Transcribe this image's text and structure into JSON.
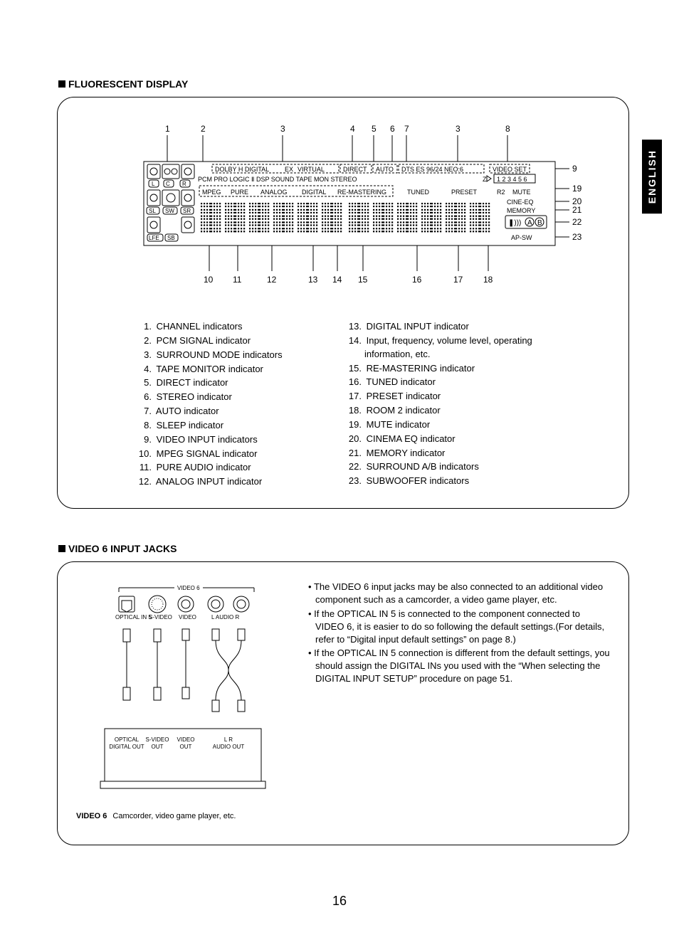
{
  "language_tab": "ENGLISH",
  "page_number": "16",
  "section_fluorescent": {
    "title": "FLUORESCENT DISPLAY",
    "top_callouts": [
      "1",
      "2",
      "3",
      "4",
      "5",
      "6",
      "7",
      "3",
      "8"
    ],
    "right_callouts": [
      "9",
      "19",
      "20",
      "21",
      "22",
      "23"
    ],
    "bottom_callouts": [
      "10",
      "11",
      "12",
      "13",
      "14",
      "15",
      "16",
      "17",
      "18"
    ],
    "row1_labels": [
      "DOLBY H DIGITAL",
      "EX",
      "VIRTUAL",
      "DIRECT",
      "AUTO",
      "DTS ES 96/24 NEO:6",
      "VIDEO SET"
    ],
    "row1b_labels": "PCM PRO LOGIC Ⅱ DSP  SOUND TAPE MON  STEREO",
    "row1b_right_small": "Z",
    "sleep_digits": "1 2 3 4 5 6",
    "row2_labels": [
      "MPEG",
      "PURE",
      "ANALOG",
      "DIGITAL",
      "RE-MASTERING",
      "TUNED",
      "PRESET",
      "R2",
      "MUTE"
    ],
    "row3_right": [
      "CINE-EQ",
      "MEMORY"
    ],
    "row4_right": "AP-SW",
    "speaker_labels_top": [
      "L",
      "C",
      "R"
    ],
    "speaker_labels_mid": [
      "SL",
      "SW",
      "SR"
    ],
    "speaker_labels_bot": [
      "LFE",
      "SB"
    ],
    "surround_box": {
      "glyph": "❚)))",
      "a": "A",
      "b": "B"
    },
    "legend_left": [
      "CHANNEL indicators",
      "PCM SIGNAL indicator",
      "SURROUND MODE indicators",
      "TAPE MONITOR indicator",
      "DIRECT indicator",
      "STEREO indicator",
      "AUTO indicator",
      "SLEEP indicator",
      "VIDEO INPUT indicators",
      "MPEG SIGNAL indicator",
      "PURE AUDIO indicator",
      "ANALOG INPUT indicator"
    ],
    "legend_right": [
      {
        "n": "13",
        "t": "DIGITAL INPUT indicator"
      },
      {
        "n": "14",
        "t": "Input, frequency, volume level, operating",
        "cont": "information, etc."
      },
      {
        "n": "15",
        "t": "RE-MASTERING indicator"
      },
      {
        "n": "16",
        "t": "TUNED indicator"
      },
      {
        "n": "17",
        "t": "PRESET indicator"
      },
      {
        "n": "18",
        "t": "ROOM 2 indicator"
      },
      {
        "n": "19",
        "t": "MUTE indicator"
      },
      {
        "n": "20",
        "t": "CINEMA EQ indicator"
      },
      {
        "n": "21",
        "t": "MEMORY indicator"
      },
      {
        "n": "22",
        "t": "SURROUND A/B indicators"
      },
      {
        "n": "23",
        "t": "SUBWOOFER indicators"
      }
    ]
  },
  "section_video6": {
    "title": "VIDEO 6 INPUT JACKS",
    "top_label": "VIDEO 6",
    "jack_top_labels": [
      "OPTICAL IN 5",
      "S-VIDEO",
      "VIDEO",
      "L  AUDIO  R"
    ],
    "bottom_box_labels": [
      {
        "l1": "OPTICAL",
        "l2": "DIGITAL OUT"
      },
      {
        "l1": "S-VIDEO",
        "l2": "OUT"
      },
      {
        "l1": "VIDEO",
        "l2": "OUT"
      },
      {
        "l1": "L     R",
        "l2": "AUDIO OUT"
      }
    ],
    "caption_bold": "VIDEO 6",
    "caption_rest": "Camcorder, video game player, etc.",
    "bullets": [
      "The VIDEO 6 input jacks may be also connected to an additional video component such as a camcorder, a video game player, etc.",
      "If the OPTICAL IN 5 is connected to the component connected to VIDEO 6, it is easier to do so following the default settings.(For details, refer to “Digital input default settings” on page 8.)",
      "If the OPTICAL IN 5 connection is different from the default settings, you should assign the DIGITAL INs you used with the “When selecting the DIGITAL INPUT SETUP” procedure on page 51."
    ]
  },
  "style": {
    "page_bg": "#ffffff",
    "text_color": "#000000",
    "diagram_stroke": "#000000",
    "diagram_dash": "3,2"
  }
}
